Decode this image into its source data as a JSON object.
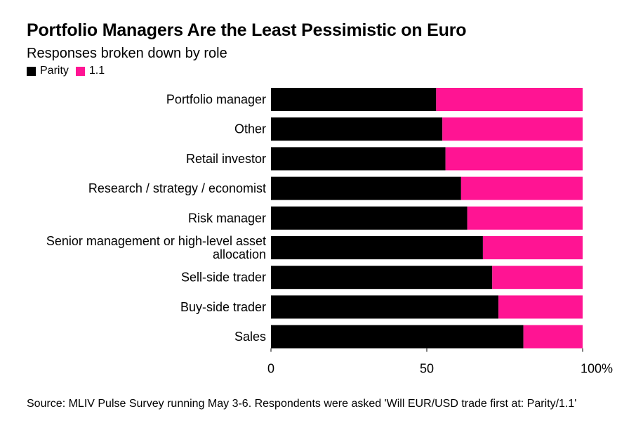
{
  "title": "Portfolio Managers Are the Least Pessimistic on Euro",
  "subtitle": "Responses broken down by role",
  "source": "Source: MLIV Pulse Survey running May 3-6. Respondents were asked 'Will EUR/USD trade first at: Parity/1.1'",
  "colors": {
    "parity": "#000000",
    "one_one": "#ff1493"
  },
  "chart_data": {
    "type": "bar",
    "orientation": "horizontal",
    "stacked": true,
    "percent_stacked": true,
    "categories": [
      [
        "Portfolio manager"
      ],
      [
        "Other"
      ],
      [
        "Retail investor"
      ],
      [
        "Research / strategy / economist"
      ],
      [
        "Risk manager"
      ],
      [
        "Senior management or high-level asset",
        "allocation"
      ],
      [
        "Sell-side trader"
      ],
      [
        "Buy-side trader"
      ],
      [
        "Sales"
      ]
    ],
    "series": [
      {
        "name": "Parity",
        "values": [
          53,
          55,
          56,
          61,
          63,
          68,
          71,
          73,
          81
        ]
      },
      {
        "name": "1.1",
        "values": [
          47,
          45,
          44,
          39,
          37,
          32,
          29,
          27,
          19
        ]
      }
    ],
    "xlim": [
      0,
      100
    ],
    "x_ticks": [
      "0",
      "50",
      "100%"
    ],
    "legend_position": "top-left",
    "grid": false
  }
}
